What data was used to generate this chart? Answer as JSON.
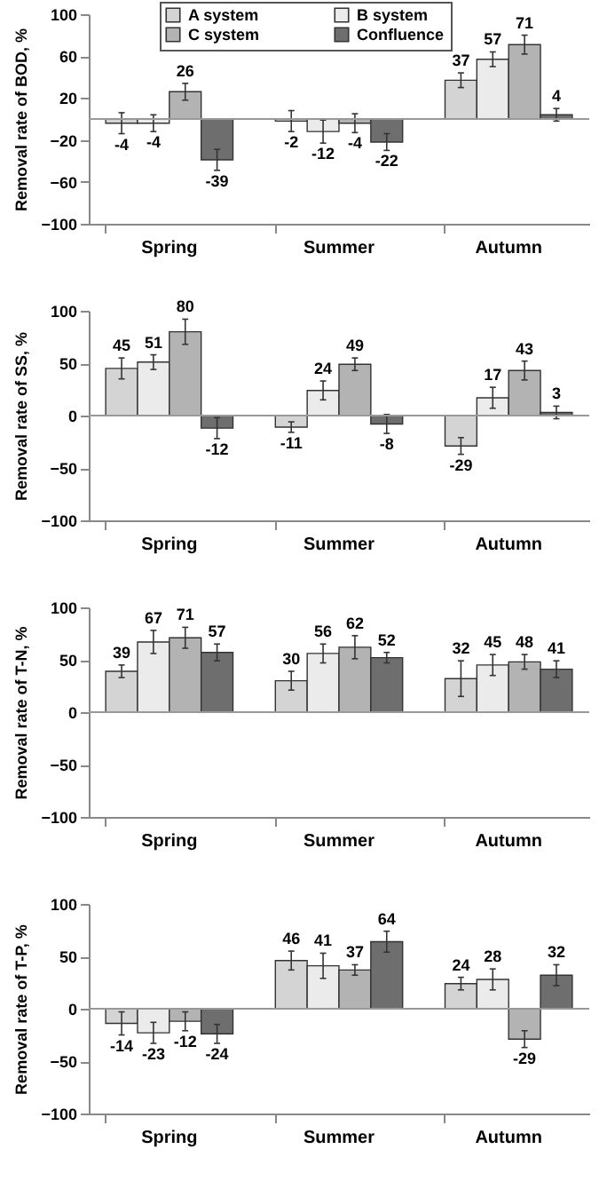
{
  "chart_data": [
    {
      "type": "bar",
      "ylabel": "Removal rate of BOD, %",
      "categories": [
        "Spring",
        "Summer",
        "Autumn"
      ],
      "ylim": [
        -100,
        100
      ],
      "yticks": [
        -100,
        -60,
        -20,
        20,
        60,
        100
      ],
      "grid": false,
      "legend": "top",
      "data_labels": true,
      "ref_lines": [
        {
          "axis": "y",
          "value": 0
        }
      ],
      "series": [
        {
          "name": "A system",
          "color": "#d4d4d4",
          "values": [
            -4,
            -2,
            37
          ],
          "errors": [
            10,
            10,
            7
          ]
        },
        {
          "name": "B system",
          "color": "#ebebeb",
          "values": [
            -4,
            -12,
            57
          ],
          "errors": [
            8,
            11,
            7
          ]
        },
        {
          "name": "C system",
          "color": "#b3b3b3",
          "values": [
            26,
            -4,
            71
          ],
          "errors": [
            8,
            9,
            9
          ]
        },
        {
          "name": "Confluence",
          "color": "#6e6e6e",
          "values": [
            -39,
            -22,
            4
          ],
          "errors": [
            10,
            8,
            6
          ]
        }
      ]
    },
    {
      "type": "bar",
      "ylabel": "Removal rate of SS, %",
      "categories": [
        "Spring",
        "Summer",
        "Autumn"
      ],
      "ylim": [
        -100,
        100
      ],
      "yticks": [
        -100,
        -50,
        0,
        50,
        100
      ],
      "grid": false,
      "data_labels": true,
      "ref_lines": [
        {
          "axis": "y",
          "value": 0
        }
      ],
      "series": [
        {
          "color": "#d4d4d4",
          "values": [
            45,
            -11,
            -29
          ],
          "errors": [
            10,
            5,
            8
          ]
        },
        {
          "color": "#ebebeb",
          "values": [
            51,
            24,
            17
          ],
          "errors": [
            7,
            9,
            10
          ]
        },
        {
          "color": "#b3b3b3",
          "values": [
            80,
            49,
            43
          ],
          "errors": [
            12,
            6,
            9
          ]
        },
        {
          "color": "#6e6e6e",
          "values": [
            -12,
            -8,
            3
          ],
          "errors": [
            10,
            9,
            6
          ]
        }
      ]
    },
    {
      "type": "bar",
      "ylabel": "Removal rate of T-N, %",
      "categories": [
        "Spring",
        "Summer",
        "Autumn"
      ],
      "ylim": [
        -100,
        100
      ],
      "yticks": [
        -100,
        -50,
        0,
        50,
        100
      ],
      "grid": false,
      "data_labels": true,
      "ref_lines": [
        {
          "axis": "y",
          "value": 0
        }
      ],
      "series": [
        {
          "color": "#d4d4d4",
          "values": [
            39,
            30,
            32
          ],
          "errors": [
            6,
            9,
            17
          ]
        },
        {
          "color": "#ebebeb",
          "values": [
            67,
            56,
            45
          ],
          "errors": [
            11,
            9,
            10
          ]
        },
        {
          "color": "#b3b3b3",
          "values": [
            71,
            62,
            48
          ],
          "errors": [
            10,
            11,
            7
          ]
        },
        {
          "color": "#6e6e6e",
          "values": [
            57,
            52,
            41
          ],
          "errors": [
            8,
            5,
            8
          ]
        }
      ]
    },
    {
      "type": "bar",
      "ylabel": "Removal rate of T-P, %",
      "categories": [
        "Spring",
        "Summer",
        "Autumn"
      ],
      "ylim": [
        -100,
        100
      ],
      "yticks": [
        -100,
        -50,
        0,
        50,
        100
      ],
      "grid": false,
      "data_labels": true,
      "ref_lines": [
        {
          "axis": "y",
          "value": 0
        }
      ],
      "series": [
        {
          "color": "#d4d4d4",
          "values": [
            -14,
            46,
            24
          ],
          "errors": [
            11,
            9,
            6
          ]
        },
        {
          "color": "#ebebeb",
          "values": [
            -23,
            41,
            28
          ],
          "errors": [
            10,
            12,
            10
          ]
        },
        {
          "color": "#b3b3b3",
          "values": [
            -12,
            37,
            -29
          ],
          "errors": [
            9,
            5,
            8
          ]
        },
        {
          "color": "#6e6e6e",
          "values": [
            -24,
            64,
            32
          ],
          "errors": [
            9,
            10,
            10
          ]
        }
      ]
    }
  ]
}
